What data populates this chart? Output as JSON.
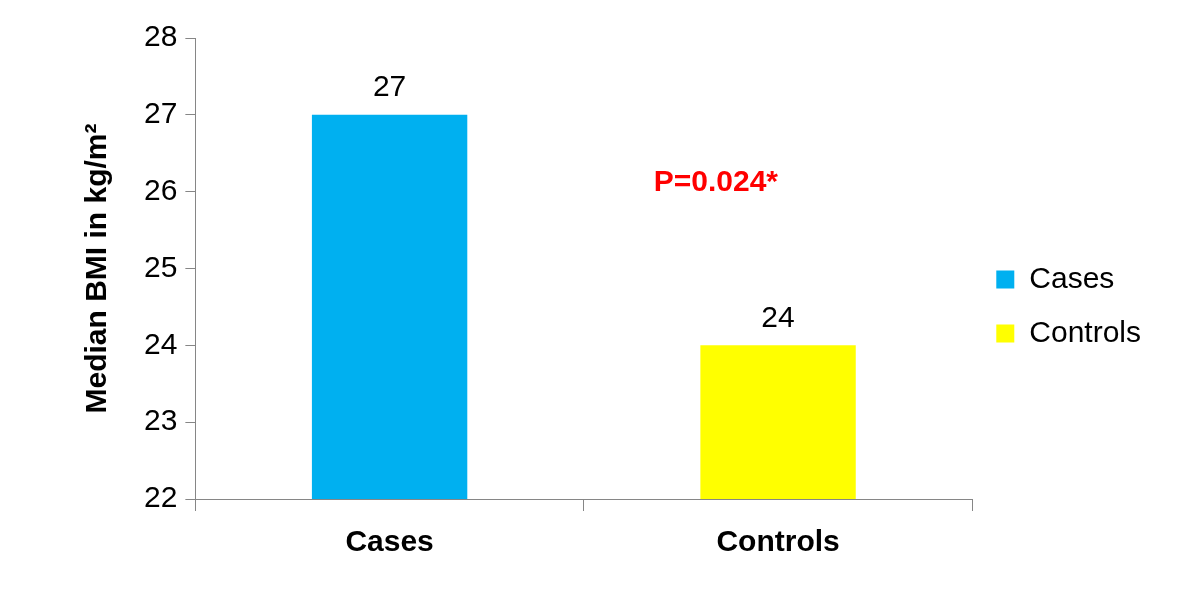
{
  "chart_data": {
    "type": "bar",
    "categories": [
      "Cases",
      "Controls"
    ],
    "series": [
      {
        "name": "Cases",
        "color": "#00b0f0",
        "values": [
          27,
          null
        ]
      },
      {
        "name": "Controls",
        "color": "#ffff00",
        "values": [
          null,
          24
        ]
      }
    ],
    "ylabel": "Median BMI in kg/m²",
    "ylim": [
      22,
      28
    ],
    "yticks": [
      22,
      23,
      24,
      25,
      26,
      27,
      28
    ],
    "data_labels": true,
    "grid": false,
    "legend": "right",
    "annotations": [
      "P=0.024*"
    ]
  }
}
